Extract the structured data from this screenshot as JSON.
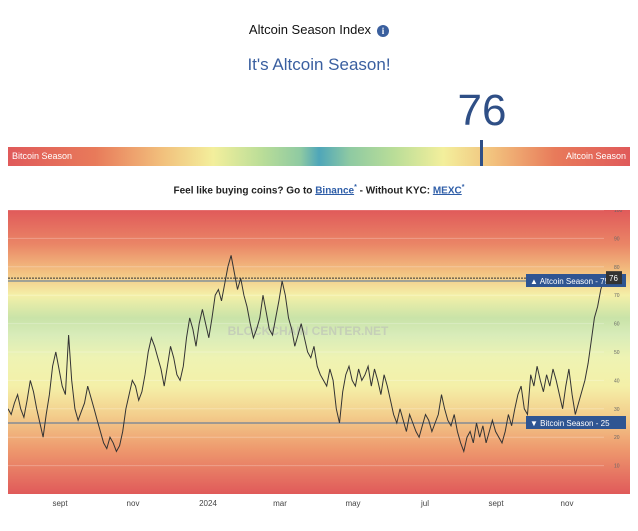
{
  "header": {
    "title": "Altcoin Season Index",
    "info_icon": "i",
    "subtitle": "It's Altcoin Season!",
    "value": "76"
  },
  "gauge": {
    "left_label": "Bitcoin Season",
    "right_label": "Altcoin Season",
    "value": 76
  },
  "promo": {
    "prefix": "Feel like buying coins? Go to ",
    "binance": "Binance",
    "mid": " - Without KYC: ",
    "mexc": "MEXC",
    "mark": "*"
  },
  "chart_data": {
    "type": "line",
    "watermark": "BLOCKCHAIN CENTER.NET",
    "x_labels": [
      "sept",
      "nov",
      "2024",
      "mar",
      "may",
      "jul",
      "sept",
      "nov"
    ],
    "y_ticks": [
      10,
      20,
      30,
      40,
      50,
      60,
      70,
      80,
      90,
      100
    ],
    "ylim": [
      0,
      100
    ],
    "current_value": 76,
    "current_label": "76",
    "thresholds": [
      {
        "label": "▲ Altcoin Season - 75",
        "value": 75
      },
      {
        "label": "▼ Bitcoin Season - 25",
        "value": 25
      }
    ],
    "series": [
      {
        "values": [
          30,
          28,
          32,
          35,
          30,
          27,
          33,
          40,
          36,
          30,
          25,
          20,
          28,
          35,
          45,
          50,
          44,
          38,
          35,
          56,
          40,
          30,
          26,
          29,
          32,
          38,
          34,
          30,
          26,
          22,
          18,
          16,
          20,
          18,
          15,
          17,
          22,
          30,
          35,
          40,
          38,
          33,
          36,
          42,
          50,
          55,
          52,
          48,
          44,
          38,
          45,
          52,
          48,
          42,
          40,
          45,
          55,
          62,
          58,
          52,
          60,
          65,
          60,
          55,
          62,
          70,
          72,
          68,
          74,
          80,
          84,
          78,
          72,
          76,
          70,
          66,
          60,
          55,
          58,
          62,
          70,
          64,
          58,
          56,
          62,
          68,
          75,
          70,
          62,
          58,
          52,
          56,
          60,
          55,
          50,
          48,
          52,
          45,
          42,
          40,
          38,
          44,
          40,
          30,
          25,
          36,
          42,
          45,
          40,
          38,
          44,
          40,
          42,
          45,
          38,
          44,
          40,
          35,
          42,
          38,
          33,
          28,
          25,
          30,
          26,
          22,
          28,
          25,
          22,
          20,
          24,
          28,
          26,
          22,
          25,
          28,
          35,
          30,
          26,
          24,
          28,
          22,
          18,
          15,
          20,
          22,
          18,
          25,
          20,
          24,
          18,
          22,
          26,
          22,
          20,
          18,
          22,
          28,
          24,
          30,
          35,
          38,
          30,
          28,
          42,
          38,
          45,
          40,
          36,
          42,
          38,
          44,
          40,
          35,
          30,
          38,
          44,
          35,
          28,
          32,
          36,
          40,
          46,
          54,
          62,
          66,
          72,
          76
        ]
      }
    ]
  }
}
